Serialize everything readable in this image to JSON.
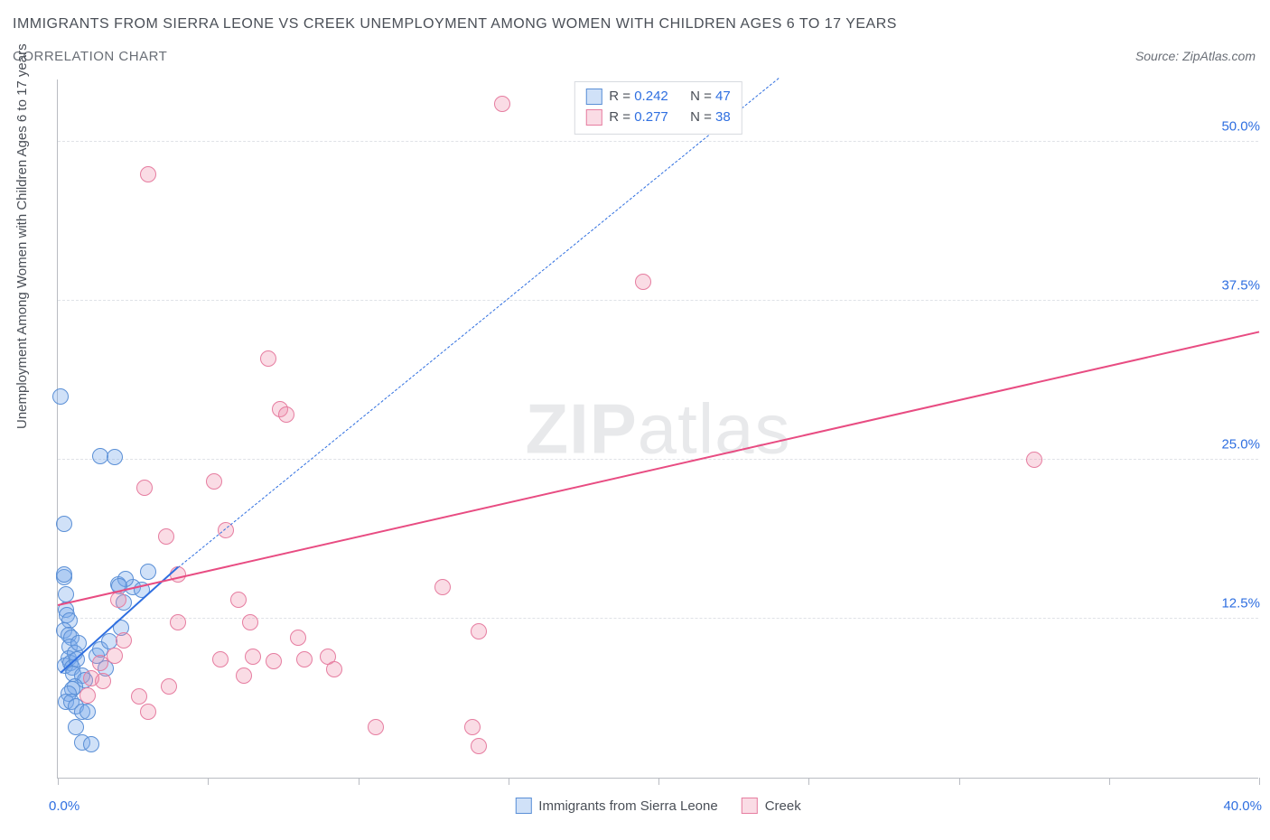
{
  "title": "IMMIGRANTS FROM SIERRA LEONE VS CREEK UNEMPLOYMENT AMONG WOMEN WITH CHILDREN AGES 6 TO 17 YEARS",
  "subtitle": "CORRELATION CHART",
  "source": "Source: ZipAtlas.com",
  "watermark_a": "ZIP",
  "watermark_b": "atlas",
  "y_axis_label": "Unemployment Among Women with Children Ages 6 to 17 years",
  "chart": {
    "type": "scatter",
    "background_color": "#ffffff",
    "grid_color": "#dfe2e7",
    "axis_color": "#b9bcc2",
    "xlim": [
      0,
      40
    ],
    "ylim": [
      0,
      55
    ],
    "xtick_positions": [
      0,
      5,
      10,
      15,
      20,
      25,
      30,
      35,
      40
    ],
    "xticks_labeled": {
      "0": "0.0%",
      "40": "40.0%"
    },
    "yticks": [
      {
        "v": 12.5,
        "label": "12.5%"
      },
      {
        "v": 25.0,
        "label": "25.0%"
      },
      {
        "v": 37.5,
        "label": "37.5%"
      },
      {
        "v": 50.0,
        "label": "50.0%"
      }
    ],
    "label_color": "#2f6fe0",
    "label_fontsize": 15
  },
  "series": [
    {
      "key": "sierra_leone",
      "label": "Immigrants from Sierra Leone",
      "marker_fill": "rgba(120,170,235,0.35)",
      "marker_stroke": "#5a8fd6",
      "marker_radius": 9,
      "trend_color": "#2f6fe0",
      "trend_solid": {
        "x1": 0.1,
        "y1": 8.2,
        "x2": 4.0,
        "y2": 16.5
      },
      "trend_dash": {
        "x1": 4.0,
        "y1": 16.5,
        "x2": 24.0,
        "y2": 55.0
      },
      "R": "0.242",
      "N": "47",
      "points": [
        [
          0.1,
          30.0
        ],
        [
          0.2,
          20.0
        ],
        [
          0.2,
          15.8
        ],
        [
          0.28,
          14.4
        ],
        [
          0.28,
          13.2
        ],
        [
          0.2,
          16.0
        ],
        [
          0.3,
          12.8
        ],
        [
          0.4,
          12.4
        ],
        [
          0.2,
          11.6
        ],
        [
          0.35,
          11.2
        ],
        [
          0.45,
          11.0
        ],
        [
          0.4,
          10.3
        ],
        [
          0.35,
          9.4
        ],
        [
          0.25,
          8.8
        ],
        [
          0.42,
          9.0
        ],
        [
          0.48,
          8.7
        ],
        [
          0.52,
          8.2
        ],
        [
          0.58,
          9.8
        ],
        [
          0.64,
          9.3
        ],
        [
          0.7,
          10.6
        ],
        [
          0.8,
          8.0
        ],
        [
          0.9,
          7.7
        ],
        [
          0.58,
          7.2
        ],
        [
          0.48,
          7.0
        ],
        [
          0.37,
          6.6
        ],
        [
          0.28,
          6.0
        ],
        [
          0.45,
          6.0
        ],
        [
          0.6,
          5.6
        ],
        [
          0.8,
          5.2
        ],
        [
          1.0,
          5.2
        ],
        [
          0.6,
          4.0
        ],
        [
          0.8,
          2.8
        ],
        [
          1.1,
          2.6
        ],
        [
          1.6,
          8.6
        ],
        [
          1.3,
          9.6
        ],
        [
          1.4,
          10.1
        ],
        [
          1.7,
          10.7
        ],
        [
          1.9,
          25.2
        ],
        [
          1.4,
          25.3
        ],
        [
          2.5,
          15.0
        ],
        [
          2.8,
          14.8
        ],
        [
          2.2,
          13.8
        ],
        [
          2.1,
          11.8
        ],
        [
          2.0,
          15.2
        ],
        [
          2.25,
          15.6
        ],
        [
          2.05,
          15.1
        ],
        [
          3.0,
          16.2
        ]
      ]
    },
    {
      "key": "creek",
      "label": "Creek",
      "marker_fill": "rgba(240,140,170,0.30)",
      "marker_stroke": "#e67da0",
      "marker_radius": 9,
      "trend_color": "#e84c82",
      "trend_solid": {
        "x1": 0.0,
        "y1": 13.5,
        "x2": 40.0,
        "y2": 35.0
      },
      "R": "0.277",
      "N": "38",
      "points": [
        [
          3.0,
          47.5
        ],
        [
          14.8,
          53.0
        ],
        [
          19.5,
          39.0
        ],
        [
          32.5,
          25.0
        ],
        [
          7.0,
          33.0
        ],
        [
          7.4,
          29.0
        ],
        [
          7.6,
          28.6
        ],
        [
          2.9,
          22.8
        ],
        [
          5.2,
          23.3
        ],
        [
          5.6,
          19.5
        ],
        [
          3.6,
          19.0
        ],
        [
          4.0,
          16.0
        ],
        [
          12.8,
          15.0
        ],
        [
          14.0,
          11.5
        ],
        [
          8.0,
          11.0
        ],
        [
          8.2,
          9.3
        ],
        [
          9.0,
          9.5
        ],
        [
          9.2,
          8.5
        ],
        [
          7.2,
          9.2
        ],
        [
          6.5,
          9.5
        ],
        [
          5.4,
          9.3
        ],
        [
          6.2,
          8.0
        ],
        [
          3.7,
          7.2
        ],
        [
          2.7,
          6.4
        ],
        [
          3.0,
          5.2
        ],
        [
          4.0,
          12.2
        ],
        [
          2.2,
          10.8
        ],
        [
          1.9,
          9.6
        ],
        [
          1.4,
          9.0
        ],
        [
          1.5,
          7.6
        ],
        [
          1.1,
          7.8
        ],
        [
          1.0,
          6.5
        ],
        [
          10.6,
          4.0
        ],
        [
          13.8,
          4.0
        ],
        [
          14.0,
          2.5
        ],
        [
          6.0,
          14.0
        ],
        [
          6.4,
          12.2
        ],
        [
          2.0,
          14.0
        ]
      ]
    }
  ],
  "legend_top_rows": [
    {
      "series": 0,
      "r_label": "R = ",
      "n_label": "N = "
    },
    {
      "series": 1,
      "r_label": "R = ",
      "n_label": "N = "
    }
  ]
}
